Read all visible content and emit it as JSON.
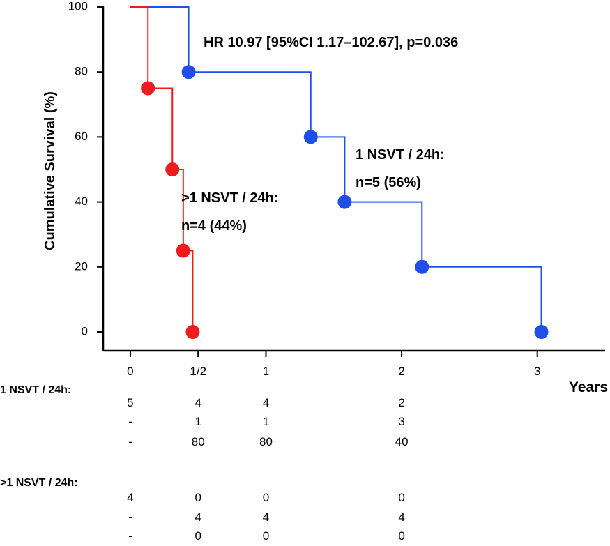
{
  "chart_data": {
    "type": "line",
    "subtype": "kaplan-meier",
    "title": "",
    "annotation": "HR 10.97 [95%CI 1.17–102.67], p=0.036",
    "xlabel": "Years",
    "ylabel": "Cumulative Survival (%)",
    "xlim": [
      -0.2,
      3.5
    ],
    "ylim": [
      0,
      100
    ],
    "xticks": [
      {
        "value": 0,
        "label": "0"
      },
      {
        "value": 0.5,
        "label": "1/2"
      },
      {
        "value": 1,
        "label": "1"
      },
      {
        "value": 2,
        "label": "2"
      },
      {
        "value": 3,
        "label": "3"
      }
    ],
    "yticks": [
      {
        "value": 0,
        "label": "0"
      },
      {
        "value": 20,
        "label": "20"
      },
      {
        "value": 40,
        "label": "40"
      },
      {
        "value": 60,
        "label": "60"
      },
      {
        "value": 80,
        "label": "80"
      },
      {
        "value": 100,
        "label": "100"
      }
    ],
    "series": [
      {
        "key": "one",
        "label_line1": "1 NSVT / 24h:",
        "label_line2": "n=5 (56%)",
        "color": "#1f4fe8",
        "steps": [
          [
            0,
            100
          ],
          [
            0.43,
            80
          ],
          [
            1.33,
            60
          ],
          [
            1.58,
            40
          ],
          [
            2.15,
            20
          ],
          [
            3.03,
            0
          ]
        ]
      },
      {
        "key": "many",
        "label_line1": ">1 NSVT / 24h:",
        "label_line2": "n=4 (44%)",
        "color": "#ee1c1c",
        "steps": [
          [
            0,
            100
          ],
          [
            0.13,
            75
          ],
          [
            0.31,
            50
          ],
          [
            0.39,
            25
          ],
          [
            0.46,
            0
          ]
        ]
      }
    ]
  },
  "risk_table": {
    "columns": [
      {
        "x": 0,
        "key": "c0"
      },
      {
        "x": 0.5,
        "key": "c1"
      },
      {
        "x": 1,
        "key": "c2"
      },
      {
        "x": 2,
        "key": "c3"
      }
    ],
    "groups": [
      {
        "title": "1 NSVT / 24h:",
        "rows": [
          [
            "5",
            "4",
            "4",
            "2"
          ],
          [
            "-",
            "1",
            "1",
            "3"
          ],
          [
            "-",
            "80",
            "80",
            "40"
          ]
        ]
      },
      {
        "title": ">1 NSVT / 24h:",
        "rows": [
          [
            "4",
            "0",
            "0",
            "0"
          ],
          [
            "-",
            "4",
            "4",
            "4"
          ],
          [
            "-",
            "0",
            "0",
            "0"
          ]
        ]
      }
    ]
  }
}
